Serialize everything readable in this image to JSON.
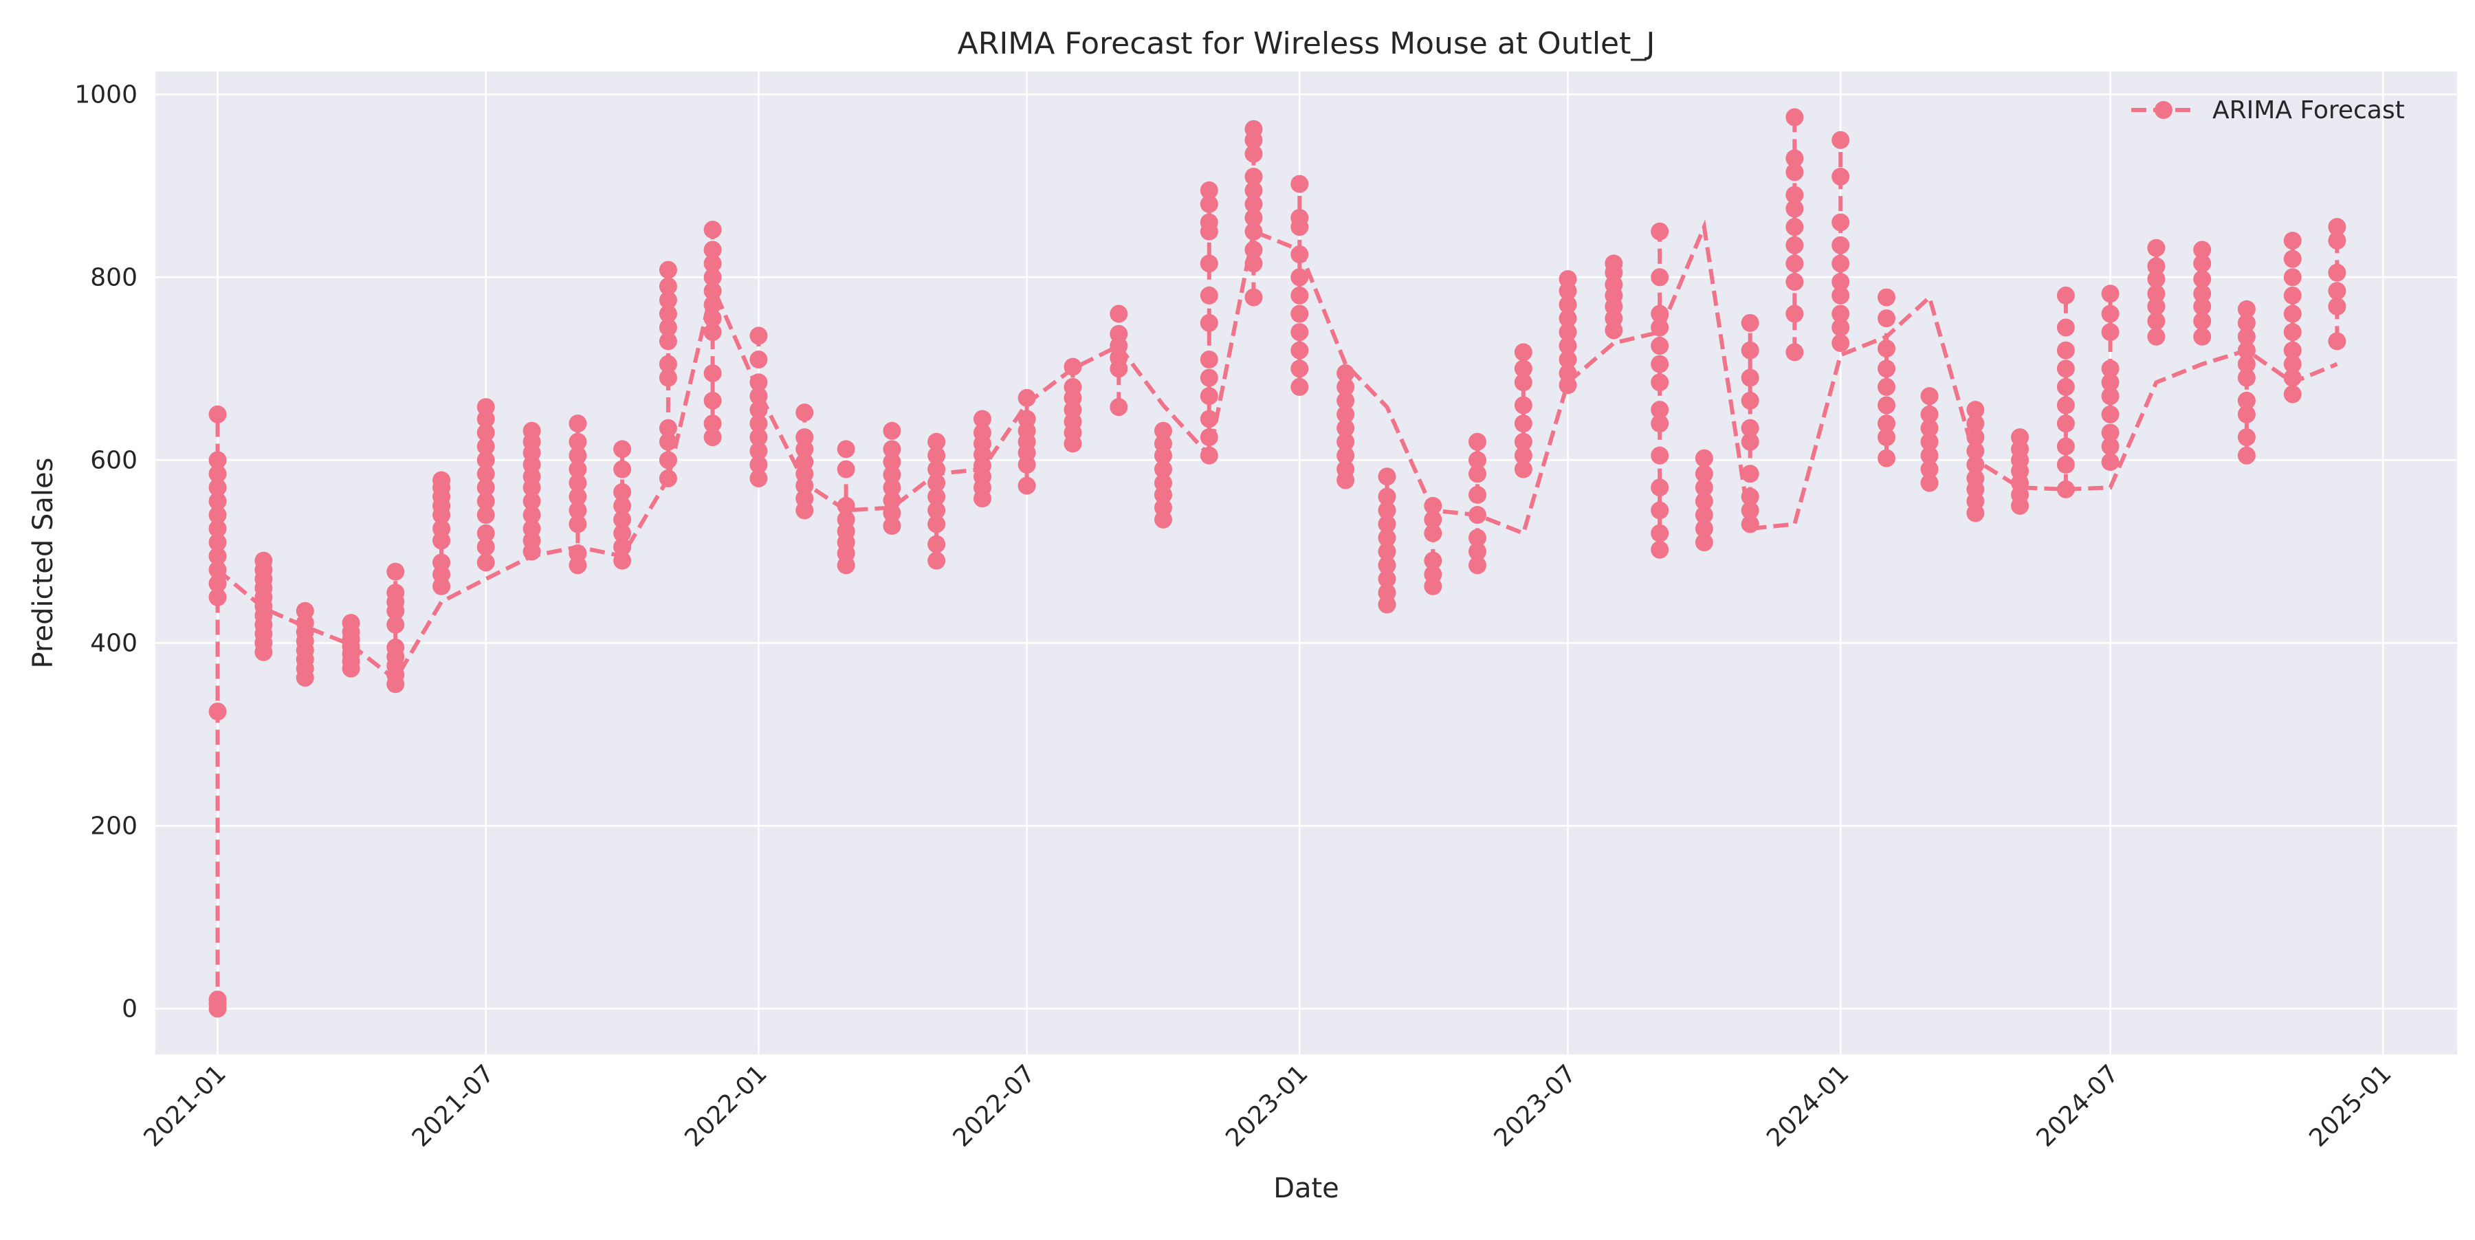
{
  "chart_data": {
    "type": "line",
    "title": "ARIMA Forecast for Wireless Mouse at Outlet_J",
    "xlabel": "Date",
    "ylabel": "Predicted Sales",
    "xlim": [
      "2020-11-20",
      "2025-02-20"
    ],
    "ylim": [
      -50,
      1025
    ],
    "x_ticks": [
      "2021-01",
      "2021-07",
      "2022-01",
      "2022-07",
      "2023-01",
      "2023-07",
      "2024-01",
      "2024-07",
      "2025-01"
    ],
    "y_ticks": [
      0,
      200,
      400,
      600,
      800,
      1000
    ],
    "grid": true,
    "legend": {
      "position": "top-right",
      "entries": [
        "ARIMA Forecast"
      ]
    },
    "colors": {
      "series": "#f0738a",
      "plot_background": "#eaeaf2",
      "grid": "#ffffff"
    },
    "series": [
      {
        "name": "ARIMA Forecast",
        "style": "dashed line with circle markers",
        "points": [
          {
            "date": "2021-01-01",
            "min": 0,
            "max": 650,
            "values": [
              0,
              5,
              10,
              325,
              450,
              465,
              480,
              495,
              510,
              525,
              540,
              555,
              570,
              585,
              600,
              650
            ]
          },
          {
            "date": "2021-02-01",
            "min": 390,
            "max": 490,
            "values": [
              390,
              400,
              410,
              420,
              430,
              440,
              450,
              460,
              470,
              480,
              490
            ]
          },
          {
            "date": "2021-03-01",
            "min": 362,
            "max": 435,
            "values": [
              362,
              372,
              382,
              392,
              402,
              412,
              422,
              435
            ]
          },
          {
            "date": "2021-04-01",
            "min": 372,
            "max": 422,
            "values": [
              372,
              380,
              388,
              396,
              404,
              412,
              422
            ]
          },
          {
            "date": "2021-05-01",
            "min": 355,
            "max": 478,
            "values": [
              355,
              365,
              375,
              385,
              395,
              420,
              435,
              445,
              455,
              478
            ]
          },
          {
            "date": "2021-06-01",
            "min": 462,
            "max": 578,
            "values": [
              462,
              475,
              488,
              512,
              525,
              540,
              550,
              560,
              570,
              578
            ]
          },
          {
            "date": "2021-07-01",
            "min": 488,
            "max": 658,
            "values": [
              488,
              505,
              520,
              540,
              555,
              570,
              585,
              600,
              615,
              630,
              645,
              658
            ]
          },
          {
            "date": "2021-08-01",
            "min": 500,
            "max": 632,
            "values": [
              500,
              512,
              525,
              540,
              555,
              570,
              582,
              595,
              608,
              620,
              632
            ]
          },
          {
            "date": "2021-09-01",
            "min": 485,
            "max": 640,
            "values": [
              485,
              498,
              530,
              545,
              560,
              575,
              590,
              605,
              620,
              640
            ]
          },
          {
            "date": "2021-10-01",
            "min": 490,
            "max": 612,
            "values": [
              490,
              505,
              520,
              535,
              550,
              565,
              590,
              612
            ]
          },
          {
            "date": "2021-11-01",
            "min": 580,
            "max": 808,
            "values": [
              580,
              600,
              620,
              635,
              690,
              705,
              730,
              745,
              760,
              775,
              790,
              808
            ]
          },
          {
            "date": "2021-12-01",
            "min": 625,
            "max": 852,
            "values": [
              625,
              640,
              665,
              695,
              740,
              755,
              770,
              785,
              800,
              815,
              830,
              852
            ]
          },
          {
            "date": "2022-01-01",
            "min": 580,
            "max": 736,
            "values": [
              580,
              595,
              610,
              625,
              640,
              655,
              670,
              685,
              710,
              736
            ]
          },
          {
            "date": "2022-02-01",
            "min": 545,
            "max": 652,
            "values": [
              545,
              558,
              572,
              585,
              598,
              612,
              625,
              652
            ]
          },
          {
            "date": "2022-03-01",
            "min": 485,
            "max": 612,
            "values": [
              485,
              498,
              510,
              522,
              535,
              550,
              590,
              612
            ]
          },
          {
            "date": "2022-04-01",
            "min": 528,
            "max": 632,
            "values": [
              528,
              542,
              556,
              570,
              584,
              598,
              612,
              632
            ]
          },
          {
            "date": "2022-05-01",
            "min": 490,
            "max": 620,
            "values": [
              490,
              508,
              530,
              545,
              560,
              575,
              590,
              605,
              620
            ]
          },
          {
            "date": "2022-06-01",
            "min": 558,
            "max": 645,
            "values": [
              558,
              570,
              582,
              594,
              606,
              618,
              630,
              645
            ]
          },
          {
            "date": "2022-07-01",
            "min": 572,
            "max": 668,
            "values": [
              572,
              595,
              608,
              620,
              632,
              645,
              668
            ]
          },
          {
            "date": "2022-08-01",
            "min": 618,
            "max": 702,
            "values": [
              618,
              630,
              642,
              655,
              668,
              680,
              702
            ]
          },
          {
            "date": "2022-09-01",
            "min": 658,
            "max": 760,
            "values": [
              658,
              700,
              712,
              725,
              738,
              760
            ]
          },
          {
            "date": "2022-10-01",
            "min": 535,
            "max": 632,
            "values": [
              535,
              548,
              562,
              575,
              590,
              605,
              618,
              632
            ]
          },
          {
            "date": "2022-11-01",
            "min": 605,
            "max": 895,
            "values": [
              605,
              625,
              645,
              670,
              690,
              710,
              750,
              780,
              815,
              850,
              860,
              880,
              895
            ]
          },
          {
            "date": "2022-12-01",
            "min": 778,
            "max": 962,
            "values": [
              778,
              815,
              830,
              850,
              865,
              880,
              895,
              910,
              935,
              950,
              962
            ]
          },
          {
            "date": "2023-01-01",
            "min": 680,
            "max": 902,
            "values": [
              680,
              700,
              720,
              740,
              760,
              780,
              800,
              825,
              855,
              865,
              902
            ]
          },
          {
            "date": "2023-02-01",
            "min": 578,
            "max": 695,
            "values": [
              578,
              590,
              605,
              620,
              635,
              650,
              665,
              680,
              695
            ]
          },
          {
            "date": "2023-03-01",
            "min": 442,
            "max": 582,
            "values": [
              442,
              455,
              470,
              485,
              500,
              515,
              530,
              545,
              560,
              582
            ]
          },
          {
            "date": "2023-04-01",
            "min": 462,
            "max": 550,
            "values": [
              462,
              475,
              490,
              520,
              535,
              550
            ]
          },
          {
            "date": "2023-05-01",
            "min": 485,
            "max": 620,
            "values": [
              485,
              500,
              515,
              540,
              562,
              585,
              600,
              620
            ]
          },
          {
            "date": "2023-06-01",
            "min": 590,
            "max": 718,
            "values": [
              590,
              605,
              620,
              640,
              660,
              685,
              700,
              718
            ]
          },
          {
            "date": "2023-07-01",
            "min": 682,
            "max": 798,
            "values": [
              682,
              695,
              710,
              725,
              740,
              755,
              770,
              785,
              798
            ]
          },
          {
            "date": "2023-08-01",
            "min": 742,
            "max": 815,
            "values": [
              742,
              755,
              768,
              780,
              792,
              805,
              815
            ]
          },
          {
            "date": "2023-09-01",
            "min": 502,
            "max": 850,
            "values": [
              502,
              520,
              545,
              570,
              605,
              640,
              655,
              685,
              705,
              725,
              745,
              760,
              800,
              850
            ]
          },
          {
            "date": "2023-10-01",
            "min": 510,
            "max": 602,
            "values": [
              510,
              525,
              540,
              555,
              570,
              585,
              602
            ]
          },
          {
            "date": "2023-11-01",
            "min": 530,
            "max": 750,
            "values": [
              530,
              545,
              560,
              585,
              620,
              635,
              665,
              690,
              720,
              750
            ]
          },
          {
            "date": "2023-12-01",
            "min": 718,
            "max": 975,
            "values": [
              718,
              760,
              795,
              815,
              835,
              855,
              875,
              890,
              915,
              930,
              975
            ]
          },
          {
            "date": "2024-01-01",
            "min": 728,
            "max": 950,
            "values": [
              728,
              745,
              760,
              780,
              795,
              815,
              835,
              860,
              910,
              950
            ]
          },
          {
            "date": "2024-02-01",
            "min": 602,
            "max": 778,
            "values": [
              602,
              625,
              640,
              660,
              680,
              700,
              722,
              755,
              778
            ]
          },
          {
            "date": "2024-03-01",
            "min": 575,
            "max": 670,
            "values": [
              575,
              590,
              605,
              620,
              635,
              650,
              670
            ]
          },
          {
            "date": "2024-04-01",
            "min": 542,
            "max": 655,
            "values": [
              542,
              555,
              568,
              580,
              595,
              610,
              625,
              640,
              655
            ]
          },
          {
            "date": "2024-05-01",
            "min": 550,
            "max": 625,
            "values": [
              550,
              562,
              575,
              588,
              600,
              612,
              625
            ]
          },
          {
            "date": "2024-06-01",
            "min": 568,
            "max": 780,
            "values": [
              568,
              595,
              615,
              640,
              660,
              680,
              700,
              720,
              745,
              780
            ]
          },
          {
            "date": "2024-07-01",
            "min": 598,
            "max": 782,
            "values": [
              598,
              615,
              630,
              650,
              670,
              685,
              700,
              740,
              760,
              782
            ]
          },
          {
            "date": "2024-08-01",
            "min": 735,
            "max": 832,
            "values": [
              735,
              752,
              768,
              782,
              798,
              812,
              832
            ]
          },
          {
            "date": "2024-09-01",
            "min": 735,
            "max": 830,
            "values": [
              735,
              752,
              768,
              782,
              798,
              815,
              830
            ]
          },
          {
            "date": "2024-10-01",
            "min": 605,
            "max": 765,
            "values": [
              605,
              625,
              650,
              665,
              690,
              705,
              720,
              735,
              750,
              765
            ]
          },
          {
            "date": "2024-11-01",
            "min": 672,
            "max": 840,
            "values": [
              672,
              690,
              705,
              720,
              740,
              760,
              780,
              800,
              820,
              840
            ]
          },
          {
            "date": "2024-12-01",
            "min": 730,
            "max": 855,
            "values": [
              730,
              768,
              785,
              805,
              840,
              855
            ]
          }
        ],
        "trend": [
          480,
          438,
          418,
          398,
          360,
          445,
          470,
          495,
          505,
          495,
          580,
          790,
          675,
          575,
          545,
          548,
          585,
          590,
          662,
          700,
          725,
          660,
          605,
          850,
          830,
          705,
          658,
          545,
          540,
          520,
          685,
          728,
          740,
          855,
          525,
          530,
          715,
          735,
          778,
          600,
          570,
          568,
          570,
          685,
          705,
          720,
          685,
          705,
          780
        ]
      }
    ]
  }
}
